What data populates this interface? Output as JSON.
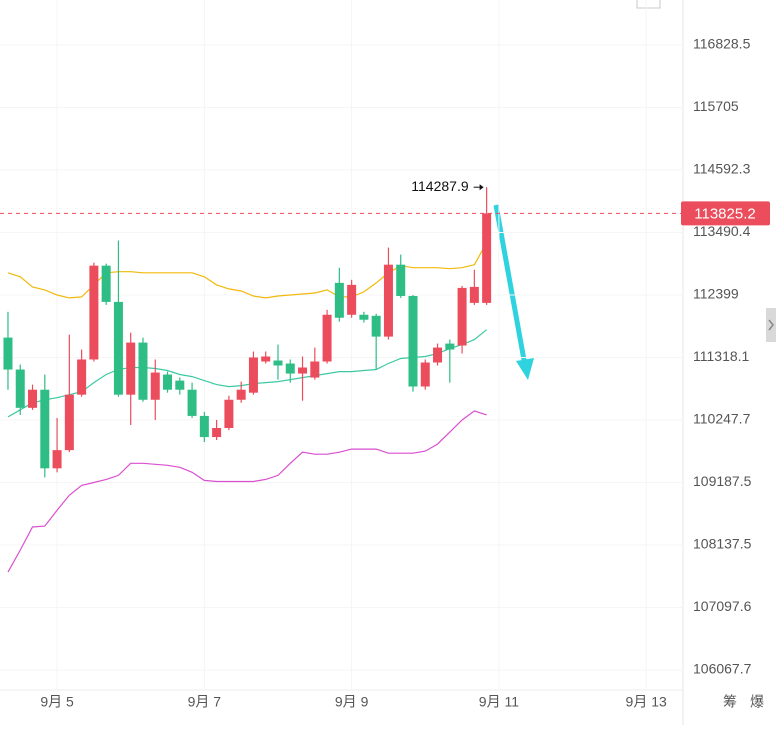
{
  "chart_data": {
    "type": "candlestick",
    "log_scale": true,
    "grid": true,
    "ylim": [
      105740,
      117644
    ],
    "yticks": [
      116828.5,
      115705.0,
      114592.3,
      113490.4,
      112399.0,
      111318.1,
      110247.7,
      109187.5,
      108137.5,
      107097.6,
      106067.7
    ],
    "xlim": [
      -0.65,
      55
    ],
    "xticks": [
      {
        "value": 4,
        "label": "9月 5"
      },
      {
        "value": 16,
        "label": "9月 7"
      },
      {
        "value": 28,
        "label": "9月 9"
      },
      {
        "value": 40,
        "label": "9月 11"
      },
      {
        "value": 52,
        "label": "9月 13"
      }
    ],
    "up_color": "#eb4d5c",
    "down_color": "#2ebd85",
    "open": [
      111661,
      111111,
      110455,
      110765,
      109427,
      109735,
      110680,
      111284,
      112910,
      112279,
      110680,
      111575,
      110593,
      111025,
      110921,
      110765,
      110317,
      109957,
      110111,
      110593,
      110714,
      111249,
      111266,
      111214,
      111042,
      110973,
      111249,
      112610,
      112056,
      112056,
      112038,
      111678,
      112927,
      112382,
      110820,
      111232,
      111558,
      111524,
      112262,
      112262
    ],
    "close": [
      111111,
      110455,
      110765,
      109427,
      109735,
      110680,
      111284,
      112910,
      112279,
      110680,
      111575,
      110593,
      111059,
      110765,
      110765,
      110317,
      109957,
      110111,
      110593,
      110765,
      111318,
      111335,
      111180,
      111042,
      111146,
      111249,
      112056,
      112004,
      112575,
      111970,
      111678,
      112927,
      112382,
      110820,
      111232,
      111489,
      111455,
      112522,
      112540,
      113825.2
    ],
    "high": [
      112107,
      111197,
      110852,
      111025,
      110282,
      111712,
      111455,
      112962,
      112945,
      113350,
      111747,
      111661,
      111284,
      111076,
      110973,
      110886,
      110386,
      110248,
      110662,
      110904,
      111421,
      111421,
      111541,
      111284,
      111335,
      111489,
      112142,
      112874,
      112663,
      112107,
      112073,
      113226,
      113103,
      112399,
      111284,
      111558,
      111627,
      112557,
      112839,
      114287.9
    ],
    "low": [
      110765,
      110334,
      110420,
      109273,
      109359,
      109701,
      110645,
      111249,
      112227,
      110645,
      110162,
      110559,
      110248,
      110714,
      110680,
      110282,
      109872,
      109906,
      110077,
      110541,
      110680,
      111214,
      110938,
      110886,
      110576,
      110938,
      111214,
      111936,
      112004,
      111919,
      111111,
      111627,
      112348,
      110731,
      110766,
      111180,
      110886,
      111386,
      112227,
      112227
    ],
    "lines": [
      {
        "color": "#f0b90b",
        "values": [
          112786,
          112716,
          112540,
          112487,
          112399,
          112348,
          112365,
          112575,
          112786,
          112804,
          112804,
          112786,
          112786,
          112786,
          112786,
          112786,
          112716,
          112575,
          112505,
          112469,
          112382,
          112348,
          112382,
          112399,
          112417,
          112434,
          112487,
          112365,
          112365,
          112452,
          112610,
          112786,
          112910,
          112874,
          112874,
          112874,
          112857,
          112874,
          112927,
          113314
        ]
      },
      {
        "color": "#3cc9a2",
        "values": [
          110300,
          110421,
          110541,
          110593,
          110628,
          110680,
          110731,
          110886,
          111025,
          111111,
          111146,
          111146,
          111128,
          111094,
          111025,
          110990,
          110921,
          110852,
          110818,
          110835,
          110869,
          110886,
          110904,
          110938,
          110973,
          111007,
          111042,
          111076,
          111076,
          111094,
          111111,
          111214,
          111301,
          111318,
          111335,
          111386,
          111472,
          111541,
          111627,
          111798
        ]
      },
      {
        "color": "#d94fd0",
        "values": [
          107685,
          108054,
          108438,
          108454,
          108721,
          108971,
          109138,
          109188,
          109239,
          109307,
          109512,
          109512,
          109495,
          109478,
          109444,
          109359,
          109222,
          109205,
          109205,
          109205,
          109205,
          109239,
          109307,
          109512,
          109700,
          109666,
          109666,
          109700,
          109752,
          109752,
          109752,
          109683,
          109683,
          109683,
          109718,
          109837,
          110042,
          110248,
          110403,
          110334
        ]
      }
    ]
  },
  "toolbar": {
    "buttons": [
      "筹",
      "爆"
    ]
  }
}
